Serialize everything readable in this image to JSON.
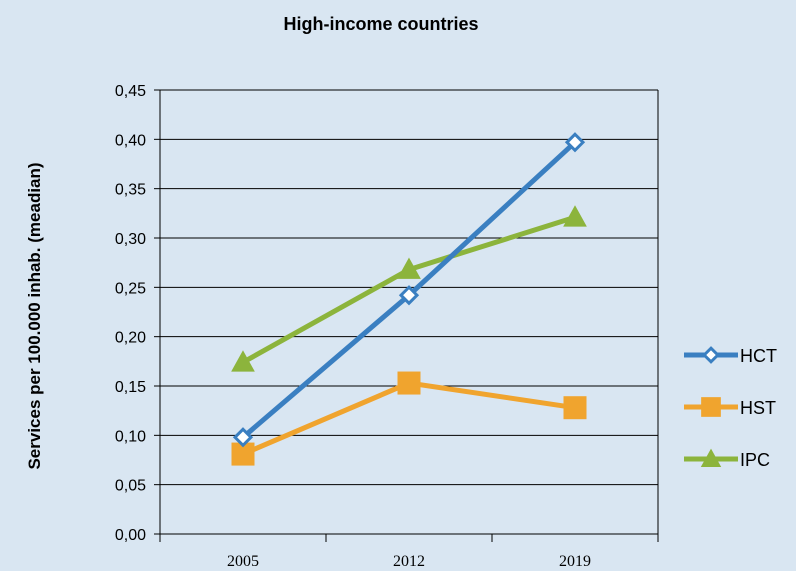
{
  "chart_data": {
    "type": "line",
    "title": "High-income countries",
    "xlabel": "",
    "ylabel": "Services per 100.000 inhab. (meadian)",
    "categories": [
      "2005",
      "2012",
      "2019"
    ],
    "ylim": [
      0,
      0.45
    ],
    "y_ticks": [
      "0,00",
      "0,05",
      "0,10",
      "0,15",
      "0,20",
      "0,25",
      "0,30",
      "0,35",
      "0,40",
      "0,45"
    ],
    "grid": true,
    "legend_position": "right",
    "series": [
      {
        "name": "HCT",
        "values": [
          0.098,
          0.242,
          0.397
        ],
        "color": "#3a7fc1",
        "marker": "diamond"
      },
      {
        "name": "HST",
        "values": [
          0.081,
          0.153,
          0.128
        ],
        "color": "#f0a42e",
        "marker": "square"
      },
      {
        "name": "IPC",
        "values": [
          0.174,
          0.268,
          0.321
        ],
        "color": "#8cb43c",
        "marker": "triangle"
      }
    ]
  }
}
